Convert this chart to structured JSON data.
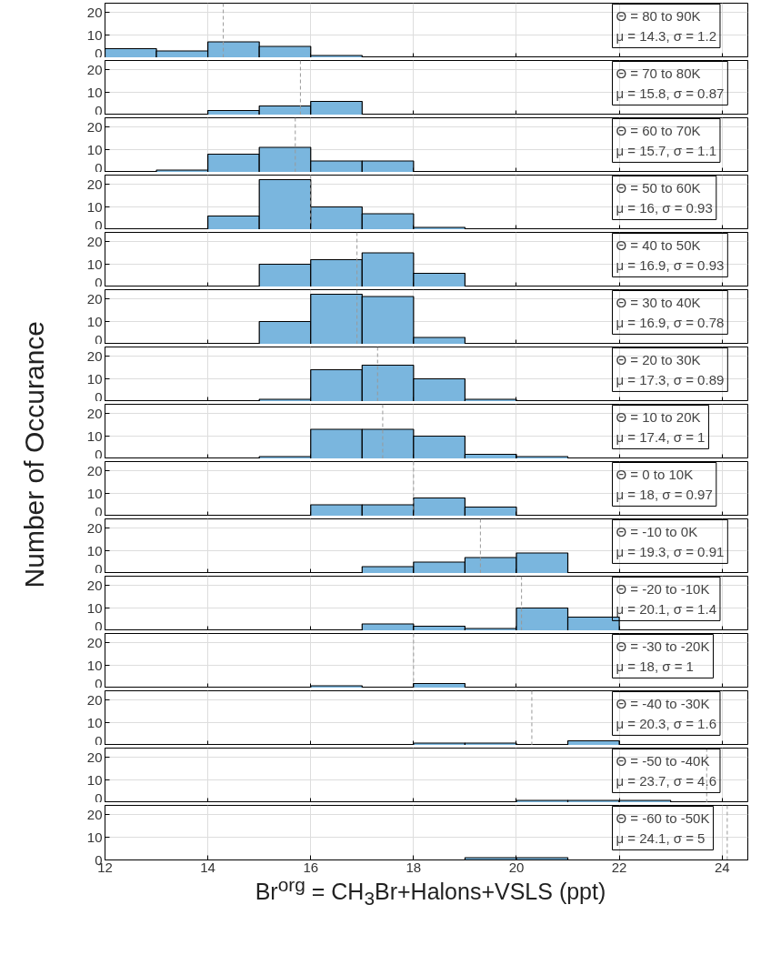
{
  "chart_data": [
    {
      "type": "histogram",
      "bins": [
        12,
        13,
        14,
        15,
        16,
        17
      ],
      "values": [
        4,
        3,
        7,
        5,
        1
      ],
      "color": "#7ab6de",
      "xlim": [
        12,
        24.5
      ],
      "xticks": [
        12,
        14,
        16,
        18,
        20,
        22,
        24
      ],
      "ylim": [
        0,
        24
      ],
      "yticks": [
        0,
        10,
        20
      ],
      "grid": true,
      "tick_labels": "y",
      "annotations": [
        "Θ = 80 to 90K",
        "μ = 14.3, σ = 1.2"
      ],
      "ref_lines": [
        {
          "axis": "x",
          "value": 14.3,
          "line_style": "dashed",
          "color": "#999999"
        }
      ]
    },
    {
      "type": "histogram",
      "bins": [
        14,
        15,
        16,
        17
      ],
      "values": [
        2,
        4,
        6
      ],
      "color": "#7ab6de",
      "xlim": [
        12,
        24.5
      ],
      "xticks": [
        12,
        14,
        16,
        18,
        20,
        22,
        24
      ],
      "ylim": [
        0,
        24
      ],
      "yticks": [
        0,
        10,
        20
      ],
      "grid": true,
      "tick_labels": "y",
      "annotations": [
        "Θ = 70 to 80K",
        "μ = 15.8, σ = 0.87"
      ],
      "ref_lines": [
        {
          "axis": "x",
          "value": 15.8,
          "line_style": "dashed",
          "color": "#999999"
        }
      ]
    },
    {
      "type": "histogram",
      "bins": [
        13,
        14,
        15,
        16,
        17,
        18
      ],
      "values": [
        1,
        8,
        11,
        5,
        5
      ],
      "color": "#7ab6de",
      "xlim": [
        12,
        24.5
      ],
      "xticks": [
        12,
        14,
        16,
        18,
        20,
        22,
        24
      ],
      "ylim": [
        0,
        24
      ],
      "yticks": [
        0,
        10,
        20
      ],
      "grid": true,
      "tick_labels": "y",
      "annotations": [
        "Θ = 60 to 70K",
        "μ = 15.7, σ = 1.1"
      ],
      "ref_lines": [
        {
          "axis": "x",
          "value": 15.7,
          "line_style": "dashed",
          "color": "#999999"
        }
      ]
    },
    {
      "type": "histogram",
      "bins": [
        14,
        15,
        16,
        17,
        18,
        19
      ],
      "values": [
        6,
        22,
        10,
        7,
        1
      ],
      "color": "#7ab6de",
      "xlim": [
        12,
        24.5
      ],
      "xticks": [
        12,
        14,
        16,
        18,
        20,
        22,
        24
      ],
      "ylim": [
        0,
        24
      ],
      "yticks": [
        0,
        10,
        20
      ],
      "grid": true,
      "tick_labels": "y",
      "annotations": [
        "Θ = 50 to 60K",
        "μ = 16, σ = 0.93"
      ],
      "ref_lines": [
        {
          "axis": "x",
          "value": 16,
          "line_style": "dashed",
          "color": "#999999"
        }
      ]
    },
    {
      "type": "histogram",
      "bins": [
        15,
        16,
        17,
        18,
        19
      ],
      "values": [
        10,
        12,
        15,
        6
      ],
      "color": "#7ab6de",
      "xlim": [
        12,
        24.5
      ],
      "xticks": [
        12,
        14,
        16,
        18,
        20,
        22,
        24
      ],
      "ylim": [
        0,
        24
      ],
      "yticks": [
        0,
        10,
        20
      ],
      "grid": true,
      "tick_labels": "y",
      "annotations": [
        "Θ = 40 to 50K",
        "μ = 16.9, σ = 0.93"
      ],
      "ref_lines": [
        {
          "axis": "x",
          "value": 16.9,
          "line_style": "dashed",
          "color": "#999999"
        }
      ]
    },
    {
      "type": "histogram",
      "bins": [
        15,
        16,
        17,
        18,
        19
      ],
      "values": [
        10,
        22,
        21,
        3
      ],
      "color": "#7ab6de",
      "xlim": [
        12,
        24.5
      ],
      "xticks": [
        12,
        14,
        16,
        18,
        20,
        22,
        24
      ],
      "ylim": [
        0,
        24
      ],
      "yticks": [
        0,
        10,
        20
      ],
      "grid": true,
      "tick_labels": "y",
      "annotations": [
        "Θ = 30 to 40K",
        "μ = 16.9, σ = 0.78"
      ],
      "ref_lines": [
        {
          "axis": "x",
          "value": 16.9,
          "line_style": "dashed",
          "color": "#999999"
        }
      ]
    },
    {
      "type": "histogram",
      "bins": [
        15,
        16,
        17,
        18,
        19,
        20
      ],
      "values": [
        1,
        14,
        16,
        10,
        1
      ],
      "color": "#7ab6de",
      "xlim": [
        12,
        24.5
      ],
      "xticks": [
        12,
        14,
        16,
        18,
        20,
        22,
        24
      ],
      "ylim": [
        0,
        24
      ],
      "yticks": [
        0,
        10,
        20
      ],
      "grid": true,
      "tick_labels": "y",
      "annotations": [
        "Θ = 20 to 30K",
        "μ = 17.3, σ = 0.89"
      ],
      "ref_lines": [
        {
          "axis": "x",
          "value": 17.3,
          "line_style": "dashed",
          "color": "#999999"
        }
      ]
    },
    {
      "type": "histogram",
      "bins": [
        15,
        16,
        17,
        18,
        19,
        20,
        21
      ],
      "values": [
        1,
        13,
        13,
        10,
        2,
        1
      ],
      "color": "#7ab6de",
      "xlim": [
        12,
        24.5
      ],
      "xticks": [
        12,
        14,
        16,
        18,
        20,
        22,
        24
      ],
      "ylim": [
        0,
        24
      ],
      "yticks": [
        0,
        10,
        20
      ],
      "grid": true,
      "tick_labels": "y",
      "ylabel": "Number of Occurance",
      "annotations": [
        "Θ = 10 to 20K",
        "μ = 17.4, σ = 1"
      ],
      "ref_lines": [
        {
          "axis": "x",
          "value": 17.4,
          "line_style": "dashed",
          "color": "#999999"
        }
      ]
    },
    {
      "type": "histogram",
      "bins": [
        16,
        17,
        18,
        19,
        20
      ],
      "values": [
        5,
        5,
        8,
        4
      ],
      "color": "#7ab6de",
      "xlim": [
        12,
        24.5
      ],
      "xticks": [
        12,
        14,
        16,
        18,
        20,
        22,
        24
      ],
      "ylim": [
        0,
        24
      ],
      "yticks": [
        0,
        10,
        20
      ],
      "grid": true,
      "tick_labels": "y",
      "annotations": [
        "Θ = 0 to 10K",
        "μ = 18, σ = 0.97"
      ],
      "ref_lines": [
        {
          "axis": "x",
          "value": 18,
          "line_style": "dashed",
          "color": "#999999"
        }
      ]
    },
    {
      "type": "histogram",
      "bins": [
        17,
        18,
        19,
        20,
        21
      ],
      "values": [
        3,
        5,
        7,
        9
      ],
      "color": "#7ab6de",
      "xlim": [
        12,
        24.5
      ],
      "xticks": [
        12,
        14,
        16,
        18,
        20,
        22,
        24
      ],
      "ylim": [
        0,
        24
      ],
      "yticks": [
        0,
        10,
        20
      ],
      "grid": true,
      "tick_labels": "y",
      "annotations": [
        "Θ = -10 to 0K",
        "μ = 19.3, σ = 0.91"
      ],
      "ref_lines": [
        {
          "axis": "x",
          "value": 19.3,
          "line_style": "dashed",
          "color": "#999999"
        }
      ]
    },
    {
      "type": "histogram",
      "bins": [
        17,
        18,
        19,
        20,
        21,
        22
      ],
      "values": [
        3,
        2,
        1,
        10,
        6
      ],
      "color": "#7ab6de",
      "xlim": [
        12,
        24.5
      ],
      "xticks": [
        12,
        14,
        16,
        18,
        20,
        22,
        24
      ],
      "ylim": [
        0,
        24
      ],
      "yticks": [
        0,
        10,
        20
      ],
      "grid": true,
      "tick_labels": "y",
      "annotations": [
        "Θ = -20 to -10K",
        "μ = 20.1, σ = 1.4"
      ],
      "ref_lines": [
        {
          "axis": "x",
          "value": 20.1,
          "line_style": "dashed",
          "color": "#999999"
        }
      ]
    },
    {
      "type": "histogram",
      "bins": [
        16,
        17,
        18,
        19
      ],
      "values": [
        1,
        0,
        2
      ],
      "color": "#7ab6de",
      "xlim": [
        12,
        24.5
      ],
      "xticks": [
        12,
        14,
        16,
        18,
        20,
        22,
        24
      ],
      "ylim": [
        0,
        24
      ],
      "yticks": [
        0,
        10,
        20
      ],
      "grid": true,
      "tick_labels": "y",
      "annotations": [
        "Θ = -30 to -20K",
        "μ = 18, σ = 1"
      ],
      "ref_lines": [
        {
          "axis": "x",
          "value": 18,
          "line_style": "dashed",
          "color": "#999999"
        }
      ]
    },
    {
      "type": "histogram",
      "bins": [
        18,
        19,
        20,
        21,
        22
      ],
      "values": [
        1,
        1,
        0,
        2
      ],
      "color": "#7ab6de",
      "xlim": [
        12,
        24.5
      ],
      "xticks": [
        12,
        14,
        16,
        18,
        20,
        22,
        24
      ],
      "ylim": [
        0,
        24
      ],
      "yticks": [
        0,
        10,
        20
      ],
      "grid": true,
      "tick_labels": "y",
      "annotations": [
        "Θ = -40 to -30K",
        "μ = 20.3, σ = 1.6"
      ],
      "ref_lines": [
        {
          "axis": "x",
          "value": 20.3,
          "line_style": "dashed",
          "color": "#999999"
        }
      ]
    },
    {
      "type": "histogram",
      "bins": [
        20,
        21,
        22,
        23
      ],
      "values": [
        1,
        1,
        1
      ],
      "color": "#7ab6de",
      "xlim": [
        12,
        24.5
      ],
      "xticks": [
        12,
        14,
        16,
        18,
        20,
        22,
        24
      ],
      "ylim": [
        0,
        24
      ],
      "yticks": [
        0,
        10,
        20
      ],
      "grid": true,
      "tick_labels": "y",
      "annotations": [
        "Θ = -50 to -40K",
        "μ = 23.7, σ = 4.6"
      ],
      "ref_lines": [
        {
          "axis": "x",
          "value": 23.7,
          "line_style": "dashed",
          "color": "#999999"
        }
      ]
    },
    {
      "type": "histogram",
      "bins": [
        19,
        20,
        21
      ],
      "values": [
        1,
        1
      ],
      "color": "#7ab6de",
      "xlim": [
        12,
        24.5
      ],
      "xticks": [
        12,
        14,
        16,
        18,
        20,
        22,
        24
      ],
      "ylim": [
        0,
        24
      ],
      "yticks": [
        0,
        10,
        20
      ],
      "grid": true,
      "xlabel": "Br$^{org}$ = CH$_{3}$Br+Halons+VSLS (ppt)",
      "annotations": [
        "Θ = -60 to -50K",
        "μ = 24.1, σ = 5"
      ],
      "ref_lines": [
        {
          "axis": "x",
          "value": 24.1,
          "line_style": "dashed",
          "color": "#999999"
        }
      ]
    }
  ]
}
